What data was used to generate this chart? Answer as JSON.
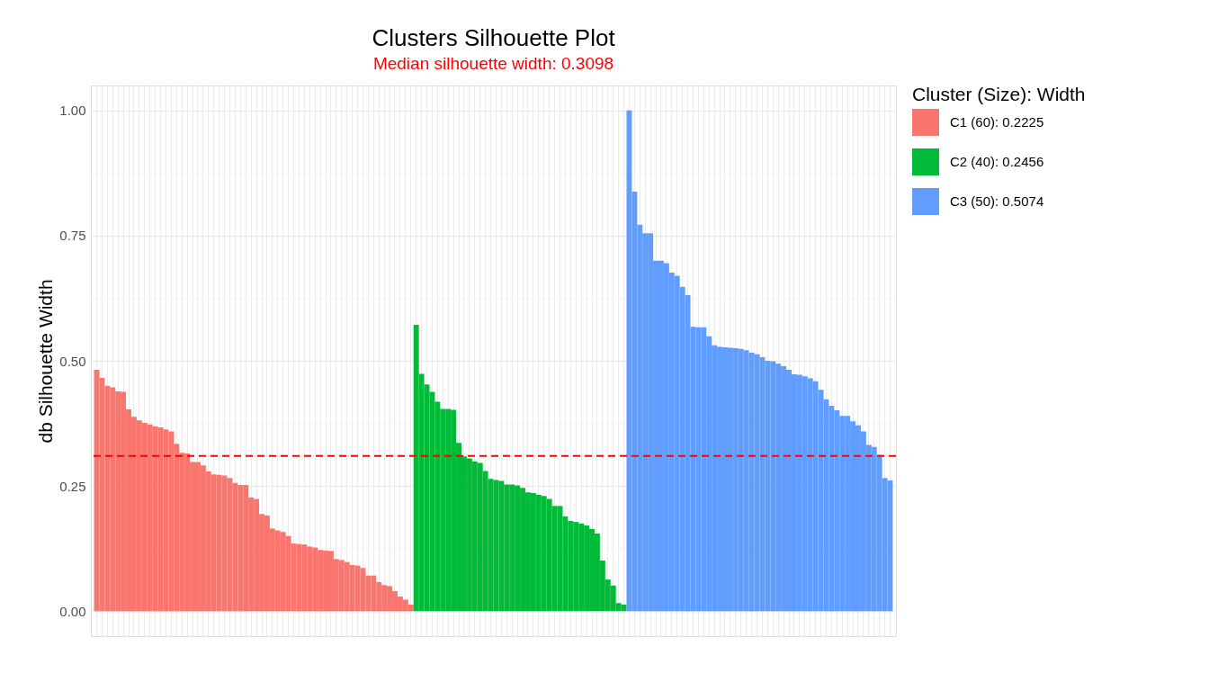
{
  "chart_data": {
    "type": "bar",
    "title": "Clusters Silhouette Plot",
    "subtitle": "Median silhouette width: 0.3098",
    "ylabel": "db Silhouette Width",
    "legend_title": "Cluster (Size): Width",
    "categories": [
      null,
      null,
      null,
      null,
      null,
      null,
      null,
      null,
      null,
      null,
      null,
      null,
      null,
      null,
      null,
      null,
      null,
      null,
      null,
      null,
      null,
      null,
      null,
      null,
      null,
      null,
      null,
      null,
      null,
      null,
      null,
      null,
      null,
      null,
      null,
      null,
      null,
      null,
      null,
      null,
      null,
      null,
      null,
      null,
      null,
      null,
      null,
      null,
      null,
      null,
      null,
      null,
      null,
      null,
      null,
      null,
      null,
      null,
      null,
      null,
      null,
      null,
      null,
      null,
      null,
      null,
      null,
      null,
      null,
      null,
      null,
      null,
      null,
      null,
      null,
      null,
      null,
      null,
      null,
      null,
      null,
      null,
      null,
      null,
      null,
      null,
      null,
      null,
      null,
      null,
      null,
      null,
      null,
      null,
      null,
      null,
      null,
      null,
      null,
      null,
      null,
      null,
      null,
      null,
      null,
      null,
      null,
      null,
      null,
      null,
      null,
      null,
      null,
      null,
      null,
      null,
      null,
      null,
      null,
      null,
      null,
      null,
      null,
      null,
      null,
      null,
      null,
      null,
      null,
      null,
      null,
      null,
      null,
      null,
      null,
      null,
      null,
      null,
      null,
      null,
      null,
      null,
      null,
      null,
      null,
      null,
      null,
      null,
      null,
      null
    ],
    "series": [
      {
        "name": "C1 (60): 0.2225",
        "color": "#f8766d",
        "values": [
          0.482,
          0.466,
          0.45,
          0.447,
          0.439,
          0.438,
          0.403,
          0.388,
          0.381,
          0.376,
          0.373,
          0.369,
          0.367,
          0.363,
          0.359,
          0.334,
          0.316,
          0.315,
          0.298,
          0.298,
          0.291,
          0.279,
          0.273,
          0.272,
          0.271,
          0.266,
          0.256,
          0.252,
          0.252,
          0.227,
          0.224,
          0.194,
          0.191,
          0.165,
          0.161,
          0.158,
          0.15,
          0.135,
          0.134,
          0.133,
          0.129,
          0.127,
          0.122,
          0.121,
          0.12,
          0.104,
          0.102,
          0.098,
          0.092,
          0.091,
          0.086,
          0.071,
          0.071,
          0.058,
          0.052,
          0.05,
          0.04,
          0.029,
          0.023,
          0.013,
          null,
          null,
          null,
          null,
          null,
          null,
          null,
          null,
          null,
          null,
          null,
          null,
          null,
          null,
          null,
          null,
          null,
          null,
          null,
          null,
          null,
          null,
          null,
          null,
          null,
          null,
          null,
          null,
          null,
          null,
          null,
          null,
          null,
          null,
          null,
          null,
          null,
          null,
          null,
          null,
          null,
          null,
          null,
          null,
          null,
          null,
          null,
          null,
          null,
          null,
          null,
          null,
          null,
          null,
          null,
          null,
          null,
          null,
          null,
          null,
          null,
          null,
          null,
          null,
          null,
          null,
          null,
          null,
          null,
          null,
          null,
          null,
          null,
          null,
          null,
          null,
          null,
          null,
          null,
          null,
          null,
          null,
          null,
          null,
          null,
          null,
          null,
          null,
          null,
          null
        ]
      },
      {
        "name": "C2 (40): 0.2456",
        "color": "#00ba38",
        "values": [
          null,
          null,
          null,
          null,
          null,
          null,
          null,
          null,
          null,
          null,
          null,
          null,
          null,
          null,
          null,
          null,
          null,
          null,
          null,
          null,
          null,
          null,
          null,
          null,
          null,
          null,
          null,
          null,
          null,
          null,
          null,
          null,
          null,
          null,
          null,
          null,
          null,
          null,
          null,
          null,
          null,
          null,
          null,
          null,
          null,
          null,
          null,
          null,
          null,
          null,
          null,
          null,
          null,
          null,
          null,
          null,
          null,
          null,
          null,
          null,
          0.572,
          0.474,
          0.453,
          0.438,
          0.418,
          0.404,
          0.404,
          0.402,
          0.336,
          0.309,
          0.305,
          0.299,
          0.296,
          0.28,
          0.264,
          0.262,
          0.26,
          0.253,
          0.253,
          0.251,
          0.246,
          0.237,
          0.236,
          0.232,
          0.23,
          0.224,
          0.21,
          0.21,
          0.189,
          0.18,
          0.178,
          0.175,
          0.171,
          0.164,
          0.155,
          0.101,
          0.063,
          0.051,
          0.016,
          0.013,
          null,
          null,
          null,
          null,
          null,
          null,
          null,
          null,
          null,
          null,
          null,
          null,
          null,
          null,
          null,
          null,
          null,
          null,
          null,
          null,
          null,
          null,
          null,
          null,
          null,
          null,
          null,
          null,
          null,
          null,
          null,
          null,
          null,
          null,
          null,
          null,
          null,
          null,
          null,
          null,
          null,
          null,
          null,
          null,
          null,
          null,
          null,
          null,
          null,
          null
        ]
      },
      {
        "name": "C3 (50): 0.5074",
        "color": "#619cff",
        "values": [
          null,
          null,
          null,
          null,
          null,
          null,
          null,
          null,
          null,
          null,
          null,
          null,
          null,
          null,
          null,
          null,
          null,
          null,
          null,
          null,
          null,
          null,
          null,
          null,
          null,
          null,
          null,
          null,
          null,
          null,
          null,
          null,
          null,
          null,
          null,
          null,
          null,
          null,
          null,
          null,
          null,
          null,
          null,
          null,
          null,
          null,
          null,
          null,
          null,
          null,
          null,
          null,
          null,
          null,
          null,
          null,
          null,
          null,
          null,
          null,
          null,
          null,
          null,
          null,
          null,
          null,
          null,
          null,
          null,
          null,
          null,
          null,
          null,
          null,
          null,
          null,
          null,
          null,
          null,
          null,
          null,
          null,
          null,
          null,
          null,
          null,
          null,
          null,
          null,
          null,
          null,
          null,
          null,
          null,
          null,
          null,
          null,
          null,
          null,
          null,
          1.0,
          0.838,
          0.772,
          0.755,
          0.755,
          0.7,
          0.7,
          0.695,
          0.676,
          0.67,
          0.648,
          0.631,
          0.568,
          0.567,
          0.567,
          0.549,
          0.531,
          0.528,
          0.527,
          0.526,
          0.525,
          0.524,
          0.521,
          0.516,
          0.513,
          0.507,
          0.5,
          0.499,
          0.494,
          0.489,
          0.482,
          0.473,
          0.472,
          0.469,
          0.465,
          0.459,
          0.442,
          0.423,
          0.41,
          0.401,
          0.39,
          0.39,
          0.379,
          0.371,
          0.359,
          0.332,
          0.328,
          0.312,
          0.266,
          0.261
        ]
      }
    ],
    "ylim": [
      -0.05,
      1.05
    ],
    "yticks": [
      {
        "value": 0,
        "label": "0.00"
      },
      {
        "value": 0.25,
        "label": "0.25"
      },
      {
        "value": 0.5,
        "label": "0.50"
      },
      {
        "value": 0.75,
        "label": "0.75"
      },
      {
        "value": 1,
        "label": "1.00"
      }
    ],
    "ref_lines": [
      {
        "axis": "y",
        "value": 0.3098,
        "color": "#ff0000",
        "line_style": "dashed"
      }
    ],
    "grid": true,
    "legend": "right",
    "tick_labels": "y"
  }
}
